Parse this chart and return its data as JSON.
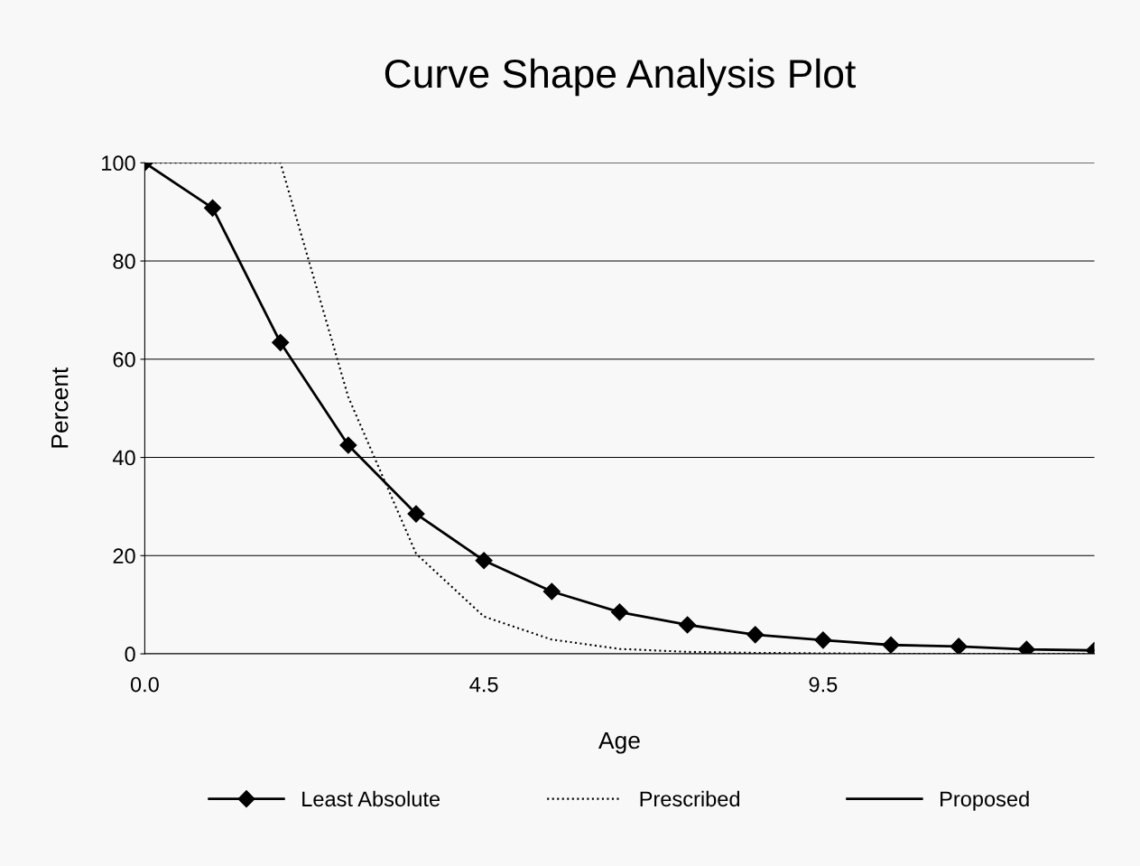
{
  "chart_data": {
    "type": "line",
    "title": "Curve Shape Analysis Plot",
    "xlabel": "Age",
    "ylabel": "Percent",
    "categories": [
      "0.0",
      null,
      null,
      null,
      null,
      "4.5",
      null,
      null,
      null,
      null,
      "9.5",
      null,
      null,
      null,
      null
    ],
    "series": [
      {
        "name": "Least Absolute",
        "color": "#000000",
        "marker": "diamond",
        "line_style": "solid",
        "values": [
          100,
          90.8,
          63.4,
          42.5,
          28.5,
          19.0,
          12.7,
          8.5,
          5.9,
          3.9,
          2.8,
          1.8,
          1.5,
          0.9,
          0.7
        ]
      },
      {
        "name": "Prescribed",
        "color": "#000000",
        "marker": "none",
        "line_style": "dotted",
        "values": [
          100,
          100,
          100,
          52.3,
          20.4,
          7.6,
          2.9,
          1.0,
          0.4,
          0.2,
          0.1,
          0,
          0,
          0,
          0
        ]
      },
      {
        "name": "Proposed",
        "color": "#000000",
        "marker": "none",
        "line_style": "solid",
        "values": [
          null,
          null,
          null,
          null,
          null,
          null,
          null,
          null,
          null,
          null,
          null,
          null,
          null,
          null,
          null
        ]
      }
    ],
    "ylim": [
      0,
      100
    ],
    "yticks": [
      0,
      20,
      40,
      60,
      80,
      100
    ],
    "grid": "y",
    "legend": "bottom"
  }
}
